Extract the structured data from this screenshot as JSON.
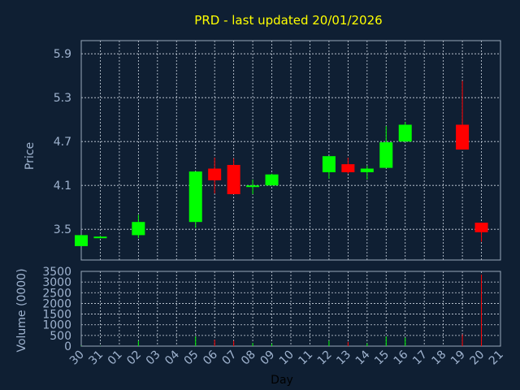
{
  "chart_data": {
    "type": "candlestick",
    "title": "PRD - last updated 20/01/2026",
    "xlabel": "Day",
    "price_panel": {
      "ylabel": "Price",
      "ylim": [
        3.08,
        6.08
      ],
      "yticks": [
        "3.5",
        "4.1",
        "4.7",
        "5.3",
        "5.9"
      ],
      "grid": true
    },
    "volume_panel": {
      "ylabel": "Volume (0000)",
      "ylim": [
        0,
        3500
      ],
      "yticks": [
        "0",
        "500",
        "1000",
        "1500",
        "2000",
        "2500",
        "3000",
        "3500"
      ],
      "grid": true
    },
    "x_tick_labels": [
      "30",
      "31",
      "01",
      "02",
      "03",
      "04",
      "05",
      "06",
      "07",
      "08",
      "09",
      "10",
      "11",
      "12",
      "13",
      "14",
      "15",
      "16",
      "17",
      "18",
      "19",
      "20",
      "21"
    ],
    "colors": {
      "up": "#00ff00",
      "down": "#ff0000",
      "title": "#ffff00",
      "text": "#9fb3cf",
      "background": "#0f1f33"
    },
    "candles": [
      {
        "day": "30",
        "open": 3.27,
        "high": 3.42,
        "low": 3.27,
        "close": 3.42,
        "volume": 20
      },
      {
        "day": "31",
        "open": 3.39,
        "high": 3.41,
        "low": 3.38,
        "close": 3.4,
        "volume": 10
      },
      {
        "day": "02",
        "open": 3.42,
        "high": 3.7,
        "low": 3.38,
        "close": 3.6,
        "volume": 250
      },
      {
        "day": "05",
        "open": 3.6,
        "high": 4.29,
        "low": 3.52,
        "close": 4.29,
        "volume": 450
      },
      {
        "day": "06",
        "open": 4.33,
        "high": 4.48,
        "low": 3.99,
        "close": 4.17,
        "volume": 300
      },
      {
        "day": "07",
        "open": 4.38,
        "high": 4.47,
        "low": 3.98,
        "close": 3.98,
        "volume": 250
      },
      {
        "day": "08",
        "open": 4.09,
        "high": 4.18,
        "low": 3.98,
        "close": 4.1,
        "volume": 150
      },
      {
        "day": "09",
        "open": 4.1,
        "high": 4.26,
        "low": 4.1,
        "close": 4.25,
        "volume": 120
      },
      {
        "day": "12",
        "open": 4.28,
        "high": 4.5,
        "low": 4.19,
        "close": 4.5,
        "volume": 250
      },
      {
        "day": "13",
        "open": 4.39,
        "high": 4.48,
        "low": 4.26,
        "close": 4.28,
        "volume": 200
      },
      {
        "day": "14",
        "open": 4.28,
        "high": 4.37,
        "low": 4.18,
        "close": 4.33,
        "volume": 130
      },
      {
        "day": "15",
        "open": 4.34,
        "high": 4.91,
        "low": 4.34,
        "close": 4.69,
        "volume": 450
      },
      {
        "day": "16",
        "open": 4.7,
        "high": 4.97,
        "low": 4.7,
        "close": 4.93,
        "volume": 400
      },
      {
        "day": "19",
        "open": 4.93,
        "high": 5.53,
        "low": 4.59,
        "close": 4.59,
        "volume": 550
      },
      {
        "day": "20",
        "open": 3.59,
        "high": 3.59,
        "low": 3.33,
        "close": 3.46,
        "volume": 3350
      }
    ]
  }
}
